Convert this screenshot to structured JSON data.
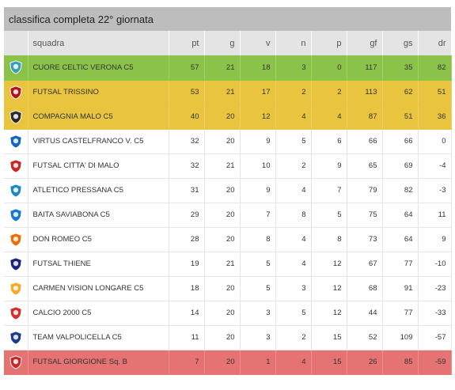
{
  "title": "classifica completa 22° giornata",
  "headers": {
    "team": "squadra",
    "pt": "pt",
    "g": "g",
    "v": "v",
    "n": "n",
    "p": "p",
    "gf": "gf",
    "gs": "gs",
    "dr": "dr"
  },
  "colors": {
    "green": "#8bc34a",
    "yellow": "#e8c43f",
    "red": "#e57373",
    "header": "#e4e4e4",
    "title": "#bdbdbd"
  },
  "rows": [
    {
      "team": "CUORE CELTIC VERONA C5",
      "pt": "57",
      "g": "21",
      "v": "18",
      "n": "3",
      "p": "0",
      "gf": "117",
      "gs": "35",
      "dr": "82",
      "zone": "green",
      "logo_icon": "cuore-celtic-logo-icon",
      "logo_color": "#37a0b8"
    },
    {
      "team": "FUTSAL TRISSINO",
      "pt": "53",
      "g": "21",
      "v": "17",
      "n": "2",
      "p": "2",
      "gf": "113",
      "gs": "62",
      "dr": "51",
      "zone": "yellow",
      "logo_icon": "futsal-trissino-logo-icon",
      "logo_color": "#b5121b"
    },
    {
      "team": "COMPAGNIA MALO C5",
      "pt": "40",
      "g": "20",
      "v": "12",
      "n": "4",
      "p": "4",
      "gf": "87",
      "gs": "51",
      "dr": "36",
      "zone": "yellow",
      "logo_icon": "compagnia-malo-logo-icon",
      "logo_color": "#2a2a2a"
    },
    {
      "team": "VIRTUS CASTELFRANCO V. C5",
      "pt": "32",
      "g": "20",
      "v": "9",
      "n": "5",
      "p": "6",
      "gf": "66",
      "gs": "66",
      "dr": "0",
      "zone": "white",
      "logo_icon": "virtus-castelfranco-logo-icon",
      "logo_color": "#1565c0"
    },
    {
      "team": "FUTSAL CITTA' DI MALO",
      "pt": "32",
      "g": "21",
      "v": "10",
      "n": "2",
      "p": "9",
      "gf": "65",
      "gs": "69",
      "dr": "-4",
      "zone": "white",
      "logo_icon": "futsal-citta-di-malo-logo-icon",
      "logo_color": "#c62828"
    },
    {
      "team": "ATLETICO PRESSANA C5",
      "pt": "31",
      "g": "20",
      "v": "9",
      "n": "4",
      "p": "7",
      "gf": "79",
      "gs": "82",
      "dr": "-3",
      "zone": "white",
      "logo_icon": "atletico-pressana-logo-icon",
      "logo_color": "#1e88c7"
    },
    {
      "team": "BAITA SAVIABONA C5",
      "pt": "29",
      "g": "20",
      "v": "7",
      "n": "8",
      "p": "5",
      "gf": "75",
      "gs": "64",
      "dr": "11",
      "zone": "white",
      "logo_icon": "baita-saviabona-logo-icon",
      "logo_color": "#1976d2"
    },
    {
      "team": "DON ROMEO C5",
      "pt": "28",
      "g": "20",
      "v": "8",
      "n": "4",
      "p": "8",
      "gf": "73",
      "gs": "64",
      "dr": "9",
      "zone": "white",
      "logo_icon": "don-romeo-logo-icon",
      "logo_color": "#ef6c00"
    },
    {
      "team": "FUTSAL THIENE",
      "pt": "19",
      "g": "21",
      "v": "5",
      "n": "4",
      "p": "12",
      "gf": "67",
      "gs": "77",
      "dr": "-10",
      "zone": "white",
      "logo_icon": "futsal-thiene-logo-icon",
      "logo_color": "#1a237e"
    },
    {
      "team": "CARMEN VISION LONGARE C5",
      "pt": "18",
      "g": "20",
      "v": "5",
      "n": "3",
      "p": "12",
      "gf": "68",
      "gs": "91",
      "dr": "-23",
      "zone": "white",
      "logo_icon": "carmen-vision-longare-logo-icon",
      "logo_color": "#f9a825"
    },
    {
      "team": "CALCIO 2000 C5",
      "pt": "14",
      "g": "20",
      "v": "3",
      "n": "5",
      "p": "12",
      "gf": "44",
      "gs": "77",
      "dr": "-33",
      "zone": "white",
      "logo_icon": "calcio-2000-logo-icon",
      "logo_color": "#d32f2f"
    },
    {
      "team": "TEAM VALPOLICELLA C5",
      "pt": "11",
      "g": "20",
      "v": "3",
      "n": "2",
      "p": "15",
      "gf": "52",
      "gs": "109",
      "dr": "-57",
      "zone": "white",
      "logo_icon": "team-valpolicella-logo-icon",
      "logo_color": "#1e3a8a"
    },
    {
      "team": "FUTSAL GIORGIONE Sq. B",
      "pt": "7",
      "g": "20",
      "v": "1",
      "n": "4",
      "p": "15",
      "gf": "26",
      "gs": "85",
      "dr": "-59",
      "zone": "red",
      "logo_icon": "futsal-giorgione-logo-icon",
      "logo_color": "#c62828"
    }
  ]
}
